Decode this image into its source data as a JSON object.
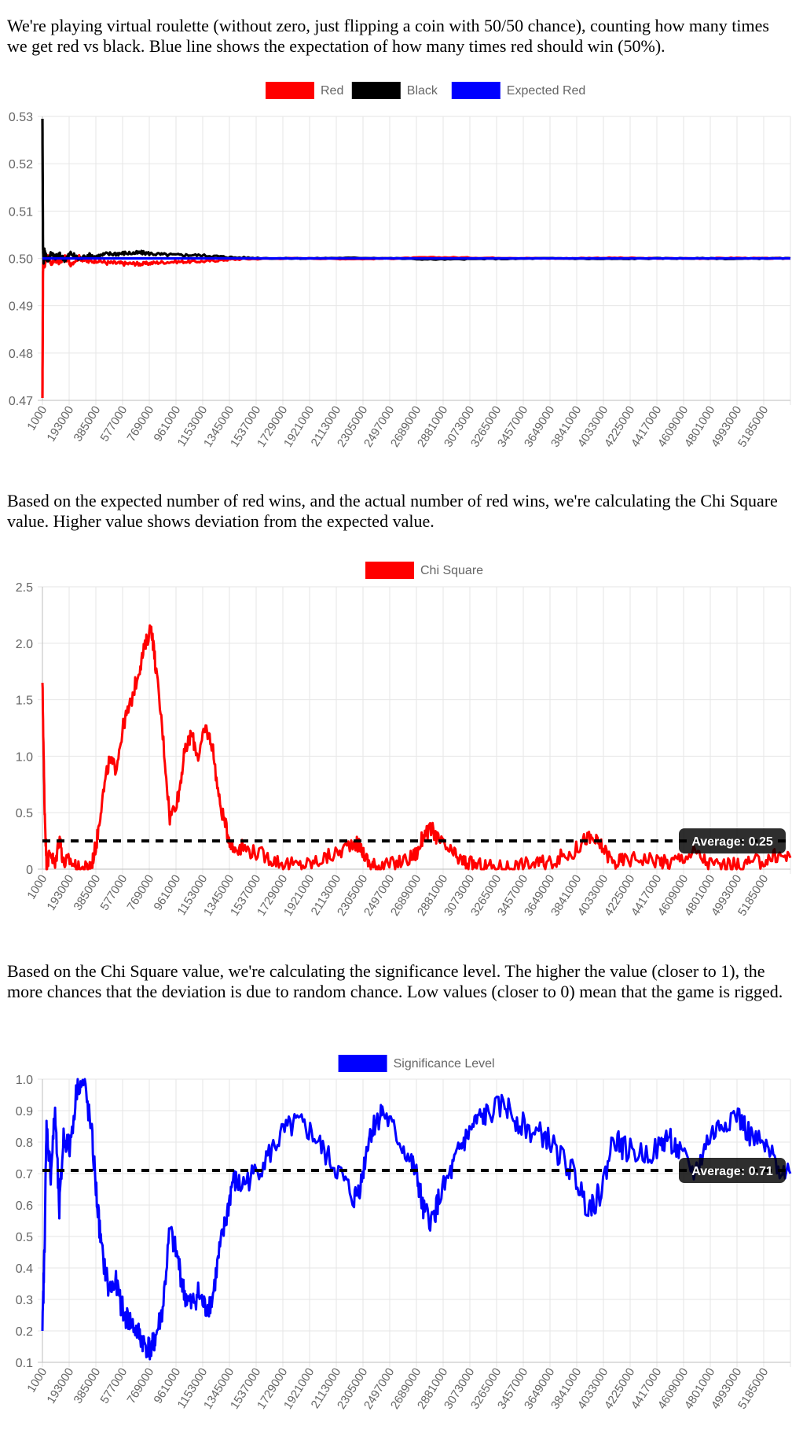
{
  "paragraphs": {
    "p1": "We're playing virtual roulette (without zero, just flipping a coin with 50/50 chance), counting how many times we get red vs black. Blue line shows the expectation of how many times red should win (50%).",
    "p2": "Based on the expected number of red wins, and the actual number of red wins, we're calculating the Chi Square value. Higher value shows deviation from the expected value.",
    "p3": "Based on the Chi Square value, we're calculating the significance level. The higher the value (closer to 1), the more chances that the deviation is due to random chance. Low values (closer to 0) mean that the game is rigged."
  },
  "chart_data": [
    {
      "type": "line",
      "title": "",
      "legend_position": "top",
      "grid": true,
      "x_ticks": [
        "1000",
        "193000",
        "385000",
        "577000",
        "769000",
        "961000",
        "1153000",
        "1345000",
        "1537000",
        "1729000",
        "1921000",
        "2113000",
        "2305000",
        "2497000",
        "2689000",
        "2881000",
        "3073000",
        "3265000",
        "3457000",
        "3649000",
        "3841000",
        "4033000",
        "4225000",
        "4417000",
        "4609000",
        "4801000",
        "4993000",
        "5185000"
      ],
      "xlim": [
        1000,
        5280000
      ],
      "ylim": [
        0.47,
        0.53
      ],
      "y_ticks": [
        0.47,
        0.48,
        0.49,
        0.5,
        0.51,
        0.52,
        0.53
      ],
      "y_tick_labels": [
        "0.47",
        "0.48",
        "0.49",
        "0.50",
        "0.51",
        "0.52",
        "0.53"
      ],
      "series": [
        {
          "name": "Red",
          "color": "#ff0000",
          "x": [
            1000,
            5000,
            9000,
            15000,
            25000,
            40000,
            60000,
            90000,
            120000,
            160000,
            200000,
            260000,
            320000,
            385000,
            450000,
            520000,
            577000,
            650000,
            700000,
            769000,
            850000,
            961000,
            1050000,
            1153000,
            1250000,
            1345000,
            1500000,
            1700000,
            1900000,
            2100000,
            2300000,
            2500000,
            2700000,
            2900000,
            3100000,
            3300000,
            3500000,
            3700000,
            3900000,
            4100000,
            4300000,
            4500000,
            4700000,
            4900000,
            5100000,
            5280000
          ],
          "y": [
            0.4705,
            0.4975,
            0.5008,
            0.4985,
            0.4995,
            0.5005,
            0.4988,
            0.4998,
            0.4992,
            0.5003,
            0.4989,
            0.5002,
            0.4993,
            0.4996,
            0.4991,
            0.499,
            0.4989,
            0.4989,
            0.4988,
            0.499,
            0.4992,
            0.4993,
            0.4993,
            0.4994,
            0.4996,
            0.4998,
            0.4999,
            0.5,
            0.5,
            0.4999,
            0.4999,
            0.5,
            0.5002,
            0.5002,
            0.5001,
            0.5001,
            0.5,
            0.5,
            0.5001,
            0.5001,
            0.5,
            0.5,
            0.5,
            0.5001,
            0.5,
            0.5
          ]
        },
        {
          "name": "Black",
          "color": "#000000",
          "x": [
            1000,
            5000,
            9000,
            15000,
            25000,
            40000,
            60000,
            90000,
            120000,
            160000,
            200000,
            260000,
            320000,
            385000,
            450000,
            520000,
            577000,
            650000,
            700000,
            769000,
            850000,
            961000,
            1050000,
            1153000,
            1250000,
            1345000,
            1500000,
            1700000,
            1900000,
            2100000,
            2300000,
            2500000,
            2700000,
            2900000,
            3100000,
            3300000,
            3500000,
            3700000,
            3900000,
            4100000,
            4300000,
            4500000,
            4700000,
            4900000,
            5100000,
            5280000
          ],
          "y": [
            0.5295,
            0.5025,
            0.4992,
            0.5015,
            0.5005,
            0.4995,
            0.5012,
            0.5002,
            0.5008,
            0.4997,
            0.5011,
            0.4998,
            0.5007,
            0.5004,
            0.5009,
            0.501,
            0.5011,
            0.5011,
            0.5012,
            0.501,
            0.5008,
            0.5007,
            0.5007,
            0.5006,
            0.5004,
            0.5002,
            0.5001,
            0.5,
            0.5,
            0.5001,
            0.5001,
            0.5,
            0.4998,
            0.4998,
            0.4999,
            0.4999,
            0.5,
            0.5,
            0.4999,
            0.4999,
            0.5,
            0.5,
            0.5,
            0.4999,
            0.5,
            0.5
          ]
        },
        {
          "name": "Expected Red",
          "color": "#0000ff",
          "x": [
            1000,
            5280000
          ],
          "y": [
            0.5,
            0.5
          ]
        }
      ]
    },
    {
      "type": "line",
      "title": "",
      "legend_position": "top",
      "grid": true,
      "x_ticks": [
        "1000",
        "193000",
        "385000",
        "577000",
        "769000",
        "961000",
        "1153000",
        "1345000",
        "1537000",
        "1729000",
        "1921000",
        "2113000",
        "2305000",
        "2497000",
        "2689000",
        "2881000",
        "3073000",
        "3265000",
        "3457000",
        "3649000",
        "3841000",
        "4033000",
        "4225000",
        "4417000",
        "4609000",
        "4801000",
        "4993000",
        "5185000"
      ],
      "xlim": [
        1000,
        5280000
      ],
      "ylim": [
        0,
        2.5
      ],
      "y_ticks": [
        0,
        0.5,
        1.0,
        1.5,
        2.0,
        2.5
      ],
      "y_tick_labels": [
        "0",
        "0.5",
        "1.0",
        "1.5",
        "2.0",
        "2.5"
      ],
      "annotation": {
        "label": "Average: 0.25",
        "value": 0.25
      },
      "series": [
        {
          "name": "Chi Square",
          "color": "#ff0000",
          "x": [
            1000,
            15000,
            30000,
            60000,
            90000,
            120000,
            150000,
            193000,
            250000,
            300000,
            350000,
            385000,
            420000,
            470000,
            520000,
            577000,
            620000,
            680000,
            720000,
            769000,
            800000,
            850000,
            900000,
            961000,
            1000000,
            1050000,
            1100000,
            1153000,
            1200000,
            1250000,
            1300000,
            1345000,
            1400000,
            1500000,
            1600000,
            1700000,
            1800000,
            1900000,
            2000000,
            2100000,
            2200000,
            2250000,
            2305000,
            2350000,
            2400000,
            2500000,
            2600000,
            2650000,
            2689000,
            2750000,
            2800000,
            2881000,
            2950000,
            3000000,
            3073000,
            3150000,
            3265000,
            3350000,
            3457000,
            3550000,
            3649000,
            3750000,
            3841000,
            3900000,
            3950000,
            4033000,
            4100000,
            4225000,
            4350000,
            4417000,
            4500000,
            4609000,
            4700000,
            4801000,
            4900000,
            4993000,
            5100000,
            5185000,
            5280000
          ],
          "y": [
            1.65,
            0.6,
            0.05,
            0.15,
            0.02,
            0.3,
            0.05,
            0.08,
            0.0,
            0.0,
            0.05,
            0.25,
            0.6,
            0.95,
            0.9,
            1.3,
            1.45,
            1.75,
            1.95,
            2.15,
            1.8,
            1.2,
            0.45,
            0.65,
            1.0,
            1.2,
            1.0,
            1.25,
            1.1,
            0.6,
            0.35,
            0.18,
            0.2,
            0.15,
            0.1,
            0.05,
            0.03,
            0.05,
            0.1,
            0.15,
            0.25,
            0.18,
            0.05,
            0.03,
            0.02,
            0.05,
            0.1,
            0.15,
            0.3,
            0.35,
            0.25,
            0.15,
            0.08,
            0.05,
            0.03,
            0.02,
            0.02,
            0.03,
            0.05,
            0.05,
            0.1,
            0.15,
            0.28,
            0.25,
            0.2,
            0.05,
            0.08,
            0.1,
            0.08,
            0.05,
            0.1,
            0.15,
            0.05,
            0.03,
            0.03,
            0.05,
            0.08,
            0.12,
            0.1
          ]
        }
      ]
    },
    {
      "type": "line",
      "title": "",
      "legend_position": "top",
      "grid": true,
      "x_ticks": [
        "1000",
        "193000",
        "385000",
        "577000",
        "769000",
        "961000",
        "1153000",
        "1345000",
        "1537000",
        "1729000",
        "1921000",
        "2113000",
        "2305000",
        "2497000",
        "2689000",
        "2881000",
        "3073000",
        "3265000",
        "3457000",
        "3649000",
        "3841000",
        "4033000",
        "4225000",
        "4417000",
        "4609000",
        "4801000",
        "4993000",
        "5185000"
      ],
      "xlim": [
        1000,
        5280000
      ],
      "ylim": [
        0.1,
        1.0
      ],
      "y_ticks": [
        0.1,
        0.2,
        0.3,
        0.4,
        0.5,
        0.6,
        0.7,
        0.8,
        0.9,
        1.0
      ],
      "y_tick_labels": [
        "0.1",
        "0.2",
        "0.3",
        "0.4",
        "0.5",
        "0.6",
        "0.7",
        "0.8",
        "0.9",
        "1.0"
      ],
      "annotation": {
        "label": "Average: 0.71",
        "value": 0.71
      },
      "series": [
        {
          "name": "Significance Level",
          "color": "#0000ff",
          "x": [
            1000,
            15000,
            30000,
            60000,
            90000,
            120000,
            150000,
            193000,
            250000,
            300000,
            350000,
            385000,
            420000,
            470000,
            520000,
            577000,
            620000,
            680000,
            720000,
            769000,
            800000,
            850000,
            900000,
            961000,
            1000000,
            1050000,
            1100000,
            1153000,
            1200000,
            1250000,
            1300000,
            1345000,
            1400000,
            1500000,
            1600000,
            1700000,
            1800000,
            1900000,
            2000000,
            2100000,
            2200000,
            2250000,
            2305000,
            2350000,
            2400000,
            2500000,
            2600000,
            2650000,
            2689000,
            2750000,
            2800000,
            2881000,
            2950000,
            3000000,
            3073000,
            3150000,
            3265000,
            3350000,
            3457000,
            3550000,
            3649000,
            3750000,
            3841000,
            3900000,
            3950000,
            4033000,
            4100000,
            4225000,
            4350000,
            4417000,
            4500000,
            4609000,
            4700000,
            4801000,
            4900000,
            4993000,
            5100000,
            5185000,
            5280000
          ],
          "y": [
            0.2,
            0.45,
            0.85,
            0.7,
            0.9,
            0.58,
            0.82,
            0.78,
            0.99,
            0.98,
            0.82,
            0.62,
            0.45,
            0.33,
            0.35,
            0.25,
            0.23,
            0.19,
            0.16,
            0.14,
            0.18,
            0.27,
            0.52,
            0.42,
            0.32,
            0.28,
            0.32,
            0.27,
            0.3,
            0.45,
            0.56,
            0.68,
            0.66,
            0.7,
            0.76,
            0.83,
            0.86,
            0.83,
            0.76,
            0.7,
            0.62,
            0.67,
            0.82,
            0.86,
            0.9,
            0.82,
            0.74,
            0.68,
            0.58,
            0.55,
            0.62,
            0.7,
            0.78,
            0.82,
            0.87,
            0.89,
            0.92,
            0.87,
            0.83,
            0.82,
            0.76,
            0.7,
            0.6,
            0.61,
            0.65,
            0.82,
            0.78,
            0.76,
            0.78,
            0.82,
            0.76,
            0.7,
            0.81,
            0.86,
            0.89,
            0.82,
            0.78,
            0.73,
            0.7
          ]
        }
      ]
    }
  ]
}
